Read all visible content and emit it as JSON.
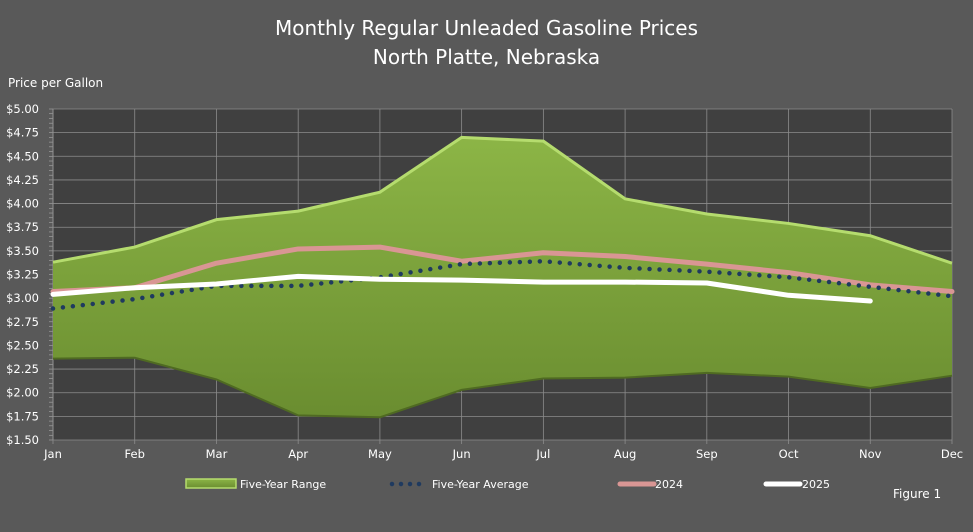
{
  "chart_data": {
    "type": "area",
    "title": "Monthly Regular Unleaded Gasoline Prices",
    "subtitle": "North Platte, Nebraska",
    "ylabel": "Price per Gallon",
    "xlabel": "",
    "ylim": [
      1.5,
      5.0
    ],
    "ytick_step": 0.25,
    "yticks": [
      "$5.00",
      "$4.75",
      "$4.50",
      "$4.25",
      "$4.00",
      "$3.75",
      "$3.50",
      "$3.25",
      "$3.00",
      "$2.75",
      "$2.50",
      "$2.25",
      "$2.00",
      "$1.75",
      "$1.50"
    ],
    "grid": true,
    "legend_position": "bottom",
    "categories": [
      "Jan",
      "Feb",
      "Mar",
      "Apr",
      "May",
      "Jun",
      "Jul",
      "Aug",
      "Sep",
      "Oct",
      "Nov",
      "Dec"
    ],
    "range": {
      "name": "Five-Year Range",
      "color": "#7ea53c",
      "high": [
        3.38,
        3.54,
        3.83,
        3.92,
        4.12,
        4.7,
        4.66,
        4.05,
        3.89,
        3.79,
        3.66,
        3.37
      ],
      "low": [
        2.36,
        2.37,
        2.14,
        1.76,
        1.74,
        2.03,
        2.15,
        2.16,
        2.21,
        2.17,
        2.05,
        2.18
      ]
    },
    "series": [
      {
        "name": "Five-Year Average",
        "color": "#1f3a5f",
        "style": "dotted",
        "values": [
          2.89,
          2.99,
          3.13,
          3.13,
          3.22,
          3.36,
          3.39,
          3.32,
          3.28,
          3.22,
          3.12,
          3.02
        ]
      },
      {
        "name": "2024",
        "color": "#d99694",
        "style": "solid",
        "values": [
          3.07,
          3.11,
          3.37,
          3.52,
          3.54,
          3.39,
          3.48,
          3.44,
          3.36,
          3.27,
          3.14,
          3.07
        ]
      },
      {
        "name": "2025",
        "color": "#ffffff",
        "style": "solid",
        "values": [
          3.04,
          3.11,
          3.15,
          3.23,
          3.2,
          3.19,
          3.17,
          3.17,
          3.16,
          3.03,
          2.97,
          null
        ]
      }
    ]
  },
  "figure_label": "Figure 1"
}
